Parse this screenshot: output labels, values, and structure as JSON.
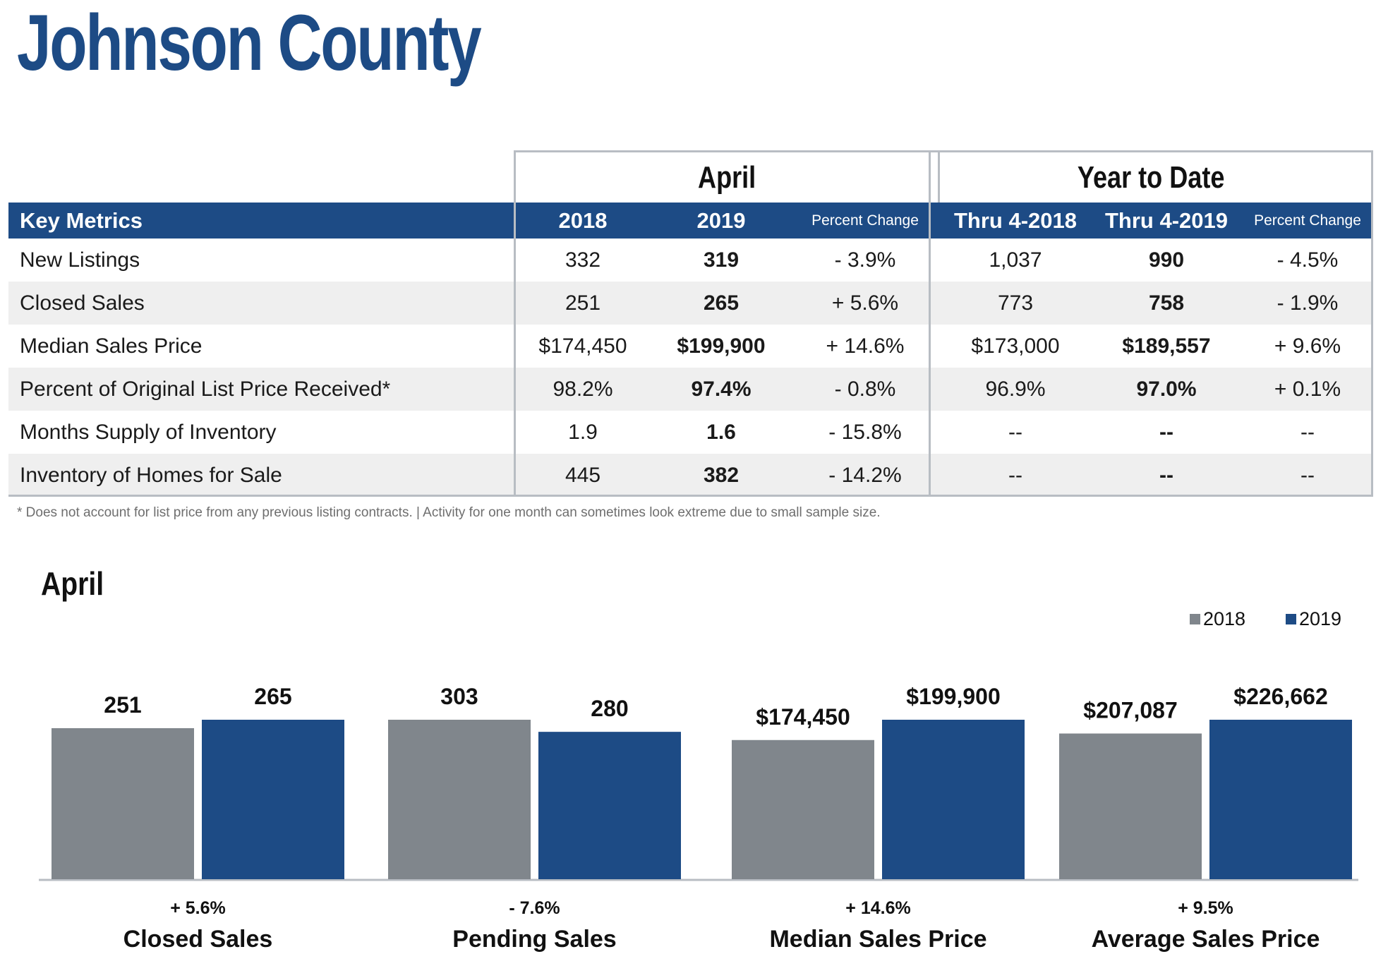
{
  "title": "Johnson County",
  "table": {
    "group_headers": [
      "April",
      "Year to Date"
    ],
    "columns": [
      "Key Metrics",
      "2018",
      "2019",
      "Percent Change",
      "Thru 4-2018",
      "Thru 4-2019",
      "Percent Change"
    ],
    "rows": [
      [
        "New Listings",
        "332",
        "319",
        "- 3.9%",
        "1,037",
        "990",
        "- 4.5%"
      ],
      [
        "Closed Sales",
        "251",
        "265",
        "+ 5.6%",
        "773",
        "758",
        "- 1.9%"
      ],
      [
        "Median Sales Price",
        "$174,450",
        "$199,900",
        "+ 14.6%",
        "$173,000",
        "$189,557",
        "+ 9.6%"
      ],
      [
        "Percent of Original List Price Received*",
        "98.2%",
        "97.4%",
        "- 0.8%",
        "96.9%",
        "97.0%",
        "+ 0.1%"
      ],
      [
        "Months Supply of Inventory",
        "1.9",
        "1.6",
        "- 15.8%",
        "--",
        "--",
        "--"
      ],
      [
        "Inventory of Homes for Sale",
        "445",
        "382",
        "- 14.2%",
        "--",
        "--",
        "--"
      ]
    ],
    "footnote": "* Does not account for list price from any previous listing contracts.  |  Activity for one month can sometimes look extreme due to small sample size."
  },
  "chart_section_title": "April",
  "chart_data": {
    "type": "bar",
    "title": "April",
    "legend_position": "top-right",
    "colors": {
      "2018": "#80868c",
      "2019": "#1d4b85"
    },
    "series": [
      {
        "name": "2018"
      },
      {
        "name": "2019"
      }
    ],
    "groups": [
      {
        "label": "Closed Sales",
        "change": "+ 5.6%",
        "values": [
          251,
          265
        ],
        "value_labels": [
          "251",
          "265"
        ]
      },
      {
        "label": "Pending Sales",
        "change": "- 7.6%",
        "values": [
          303,
          280
        ],
        "value_labels": [
          "303",
          "280"
        ]
      },
      {
        "label": "Median Sales Price",
        "change": "+ 14.6%",
        "values": [
          174450,
          199900
        ],
        "value_labels": [
          "$174,450",
          "$199,900"
        ]
      },
      {
        "label": "Average Sales Price",
        "change": "+ 9.5%",
        "values": [
          207087,
          226662
        ],
        "value_labels": [
          "$207,087",
          "$226,662"
        ]
      }
    ]
  }
}
